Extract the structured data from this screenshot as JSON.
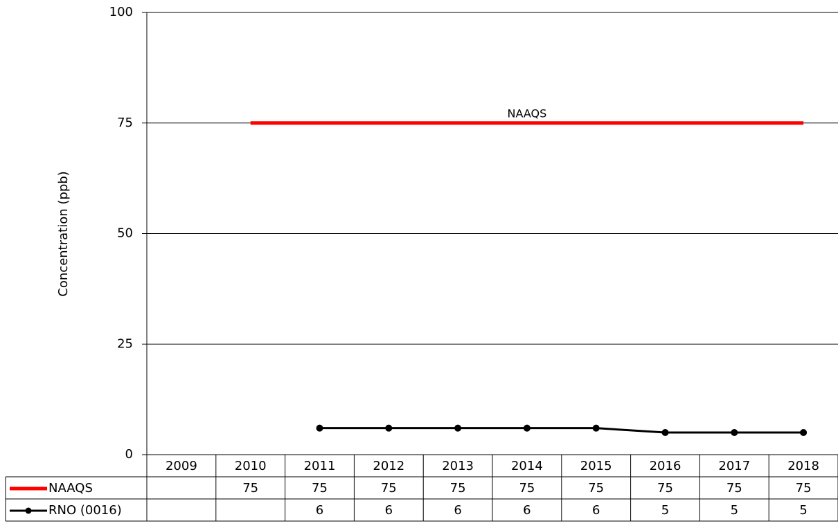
{
  "chart_data": {
    "type": "line",
    "y_label": "Concentration (ppb)",
    "annotation": "NAAQS",
    "categories": [
      "2009",
      "2010",
      "2011",
      "2012",
      "2013",
      "2014",
      "2015",
      "2016",
      "2017",
      "2018"
    ],
    "series": [
      {
        "name": "NAAQS",
        "color": "#ff0000",
        "width": 5,
        "marker": false,
        "values": [
          null,
          75,
          75,
          75,
          75,
          75,
          75,
          75,
          75,
          75
        ]
      },
      {
        "name": "RNO (0016)",
        "color": "#000000",
        "width": 3,
        "marker": true,
        "values": [
          null,
          null,
          6,
          6,
          6,
          6,
          6,
          5,
          5,
          5
        ]
      }
    ],
    "ylim": [
      0,
      100
    ],
    "yticks": [
      0,
      25,
      50,
      75,
      100
    ],
    "grid": true,
    "data_table": true
  }
}
